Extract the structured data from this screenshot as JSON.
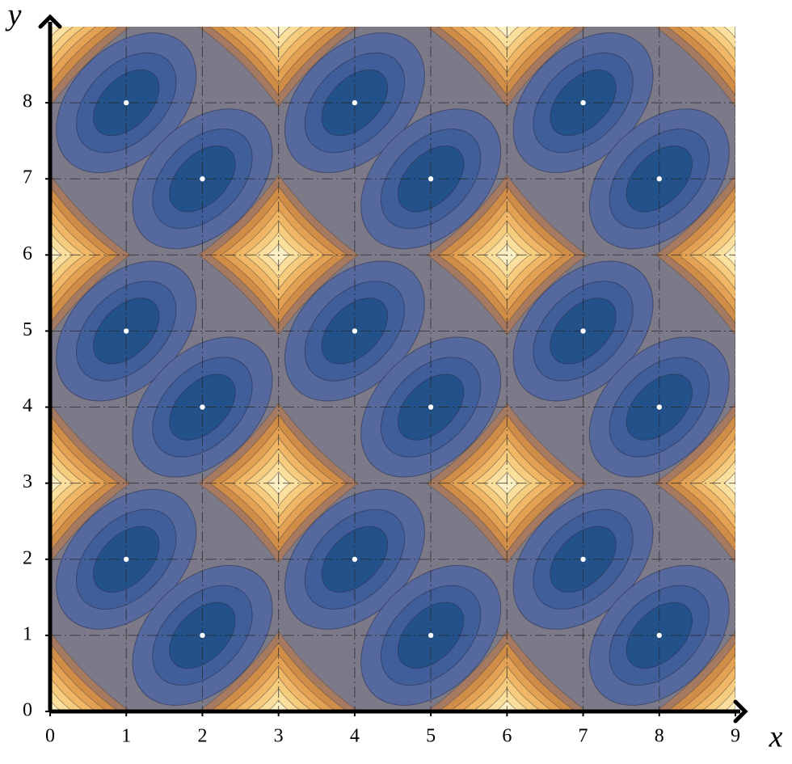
{
  "chart_data": {
    "type": "contour",
    "xlabel": "x",
    "ylabel": "y",
    "xlim": [
      0,
      9
    ],
    "ylim": [
      0,
      9
    ],
    "xticks": [
      0,
      1,
      2,
      3,
      4,
      5,
      6,
      7,
      8,
      9
    ],
    "yticks": [
      0,
      1,
      2,
      3,
      4,
      5,
      6,
      7,
      8
    ],
    "grid": true,
    "background_color": "#7c7a88",
    "minima": {
      "x": [
        1,
        4,
        7,
        2,
        5,
        8,
        1,
        4,
        7,
        2,
        5,
        8,
        1,
        4,
        7,
        2,
        5,
        8
      ],
      "y": [
        8,
        8,
        8,
        7,
        7,
        7,
        5,
        5,
        5,
        4,
        4,
        4,
        2,
        2,
        2,
        1,
        1,
        1
      ]
    },
    "minima_colors": [
      "#56699f",
      "#3f5e9a",
      "#23528a"
    ],
    "maxima": {
      "x": [
        0,
        3,
        6,
        9,
        0,
        3,
        6,
        9,
        0,
        3,
        6,
        9,
        0,
        3,
        6,
        9
      ],
      "y": [
        0,
        0,
        0,
        0,
        3,
        3,
        3,
        3,
        6,
        6,
        6,
        6,
        9,
        9,
        9,
        9
      ]
    },
    "maxima_colors": [
      "#a57a60",
      "#d08d48",
      "#e3a253",
      "#efb766",
      "#f6cc7e",
      "#fbdf9c",
      "#fdf0c4"
    ],
    "point_color": "#ffffff"
  }
}
